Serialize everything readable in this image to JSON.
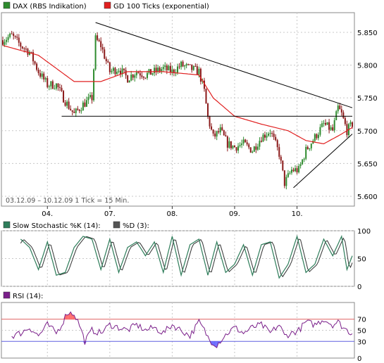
{
  "colors": {
    "up_candle": "#2e8b2e",
    "down_candle": "#8b1a1a",
    "ma_line": "#e02020",
    "trend_line": "#000000",
    "stoch_k": "#2e7d5a",
    "stoch_d": "#333333",
    "rsi_line": "#7a1f8a",
    "rsi_over": "#ff6b6b",
    "rsi_under": "#6b6bff",
    "grid": "#c8c8c8",
    "panel_border": "#888888",
    "level70": "#e06060",
    "level30": "#6060e0"
  },
  "chart_data": [
    {
      "type": "candlestick",
      "legend": [
        {
          "name": "DAX (RBS Indikation)",
          "color": "#2e8b2e"
        },
        {
          "name": "GD 100 Ticks (exponential)",
          "color": "#e02020"
        }
      ],
      "info_text": "03.12.09 – 10.12.09  1 Tick = 15 Min.",
      "y_ticks": [
        "5.850",
        "5.800",
        "5.750",
        "5.700",
        "5.650",
        "5.600"
      ],
      "y_tick_values": [
        5850,
        5800,
        5750,
        5700,
        5650,
        5600
      ],
      "ylim": [
        5585,
        5880
      ],
      "x_ticks": [
        "04.",
        "07.",
        "08.",
        "09.",
        "10."
      ],
      "x_tick_index": [
        25,
        60,
        95,
        130,
        165
      ],
      "n_ticks": 197,
      "close_anchors": [
        [
          0,
          5838
        ],
        [
          5,
          5845
        ],
        [
          10,
          5830
        ],
        [
          15,
          5820
        ],
        [
          20,
          5790
        ],
        [
          25,
          5770
        ],
        [
          30,
          5770
        ],
        [
          35,
          5745
        ],
        [
          40,
          5725
        ],
        [
          45,
          5740
        ],
        [
          50,
          5750
        ],
        [
          52,
          5840
        ],
        [
          55,
          5830
        ],
        [
          60,
          5790
        ],
        [
          65,
          5795
        ],
        [
          70,
          5780
        ],
        [
          75,
          5790
        ],
        [
          80,
          5785
        ],
        [
          85,
          5790
        ],
        [
          90,
          5795
        ],
        [
          95,
          5790
        ],
        [
          100,
          5800
        ],
        [
          105,
          5795
        ],
        [
          110,
          5790
        ],
        [
          113,
          5760
        ],
        [
          115,
          5720
        ],
        [
          118,
          5690
        ],
        [
          122,
          5700
        ],
        [
          126,
          5680
        ],
        [
          130,
          5675
        ],
        [
          135,
          5680
        ],
        [
          140,
          5670
        ],
        [
          145,
          5690
        ],
        [
          150,
          5700
        ],
        [
          155,
          5665
        ],
        [
          158,
          5620
        ],
        [
          162,
          5640
        ],
        [
          166,
          5640
        ],
        [
          170,
          5670
        ],
        [
          175,
          5690
        ],
        [
          180,
          5710
        ],
        [
          185,
          5700
        ],
        [
          188,
          5735
        ],
        [
          190,
          5725
        ],
        [
          193,
          5700
        ],
        [
          196,
          5710
        ]
      ],
      "moving_average": [
        [
          0,
          5830
        ],
        [
          20,
          5815
        ],
        [
          40,
          5775
        ],
        [
          55,
          5775
        ],
        [
          70,
          5790
        ],
        [
          90,
          5790
        ],
        [
          110,
          5785
        ],
        [
          118,
          5750
        ],
        [
          130,
          5722
        ],
        [
          145,
          5710
        ],
        [
          160,
          5700
        ],
        [
          170,
          5685
        ],
        [
          180,
          5680
        ],
        [
          190,
          5695
        ],
        [
          196,
          5705
        ]
      ],
      "trend_lines": [
        {
          "from": [
            52,
            5865
          ],
          "to": [
            196,
            5735
          ]
        },
        {
          "from": [
            33,
            5722
          ],
          "to": [
            196,
            5722
          ]
        },
        {
          "from": [
            163,
            5613
          ],
          "to": [
            196,
            5695
          ]
        }
      ]
    },
    {
      "type": "line",
      "legend": [
        {
          "name": "Slow Stochastic %K (14):",
          "color": "#2e7d5a"
        },
        {
          "name": "%D (3):",
          "color": "#555555"
        }
      ],
      "y_ticks": [
        "100",
        "50",
        "0"
      ],
      "y_tick_values": [
        100,
        50,
        0
      ],
      "ylim": [
        0,
        100
      ],
      "k_anchors": [
        [
          0,
          30
        ],
        [
          5,
          60
        ],
        [
          10,
          85
        ],
        [
          15,
          70
        ],
        [
          20,
          30
        ],
        [
          25,
          80
        ],
        [
          30,
          20
        ],
        [
          35,
          25
        ],
        [
          40,
          70
        ],
        [
          45,
          90
        ],
        [
          50,
          85
        ],
        [
          55,
          30
        ],
        [
          60,
          85
        ],
        [
          65,
          25
        ],
        [
          70,
          70
        ],
        [
          75,
          80
        ],
        [
          80,
          55
        ],
        [
          85,
          80
        ],
        [
          90,
          25
        ],
        [
          95,
          90
        ],
        [
          100,
          20
        ],
        [
          105,
          75
        ],
        [
          110,
          85
        ],
        [
          115,
          20
        ],
        [
          120,
          80
        ],
        [
          125,
          25
        ],
        [
          130,
          40
        ],
        [
          135,
          75
        ],
        [
          140,
          20
        ],
        [
          145,
          75
        ],
        [
          150,
          80
        ],
        [
          155,
          15
        ],
        [
          160,
          40
        ],
        [
          165,
          90
        ],
        [
          170,
          25
        ],
        [
          175,
          40
        ],
        [
          180,
          85
        ],
        [
          185,
          55
        ],
        [
          190,
          90
        ],
        [
          193,
          30
        ],
        [
          196,
          55
        ]
      ]
    },
    {
      "type": "line",
      "legend": [
        {
          "name": "RSI (14):",
          "color": "#7a1f8a"
        }
      ],
      "y_ticks": [
        "70",
        "50",
        "30",
        "0"
      ],
      "y_tick_values": [
        70,
        50,
        30,
        0
      ],
      "ylim": [
        0,
        100
      ],
      "levels": [
        70,
        30
      ],
      "rsi_anchors": [
        [
          0,
          50
        ],
        [
          5,
          40
        ],
        [
          10,
          45
        ],
        [
          15,
          55
        ],
        [
          20,
          40
        ],
        [
          25,
          60
        ],
        [
          30,
          45
        ],
        [
          33,
          60
        ],
        [
          36,
          82
        ],
        [
          40,
          80
        ],
        [
          43,
          60
        ],
        [
          46,
          30
        ],
        [
          50,
          50
        ],
        [
          55,
          45
        ],
        [
          60,
          60
        ],
        [
          65,
          55
        ],
        [
          70,
          50
        ],
        [
          75,
          60
        ],
        [
          80,
          50
        ],
        [
          85,
          55
        ],
        [
          90,
          45
        ],
        [
          95,
          60
        ],
        [
          100,
          50
        ],
        [
          105,
          40
        ],
        [
          110,
          65
        ],
        [
          113,
          50
        ],
        [
          116,
          32
        ],
        [
          120,
          24
        ],
        [
          123,
          35
        ],
        [
          126,
          45
        ],
        [
          130,
          55
        ],
        [
          135,
          45
        ],
        [
          140,
          55
        ],
        [
          145,
          60
        ],
        [
          150,
          45
        ],
        [
          155,
          60
        ],
        [
          158,
          40
        ],
        [
          162,
          45
        ],
        [
          166,
          50
        ],
        [
          170,
          65
        ],
        [
          175,
          60
        ],
        [
          180,
          70
        ],
        [
          185,
          60
        ],
        [
          188,
          65
        ],
        [
          191,
          55
        ],
        [
          194,
          48
        ],
        [
          196,
          45
        ]
      ]
    }
  ]
}
